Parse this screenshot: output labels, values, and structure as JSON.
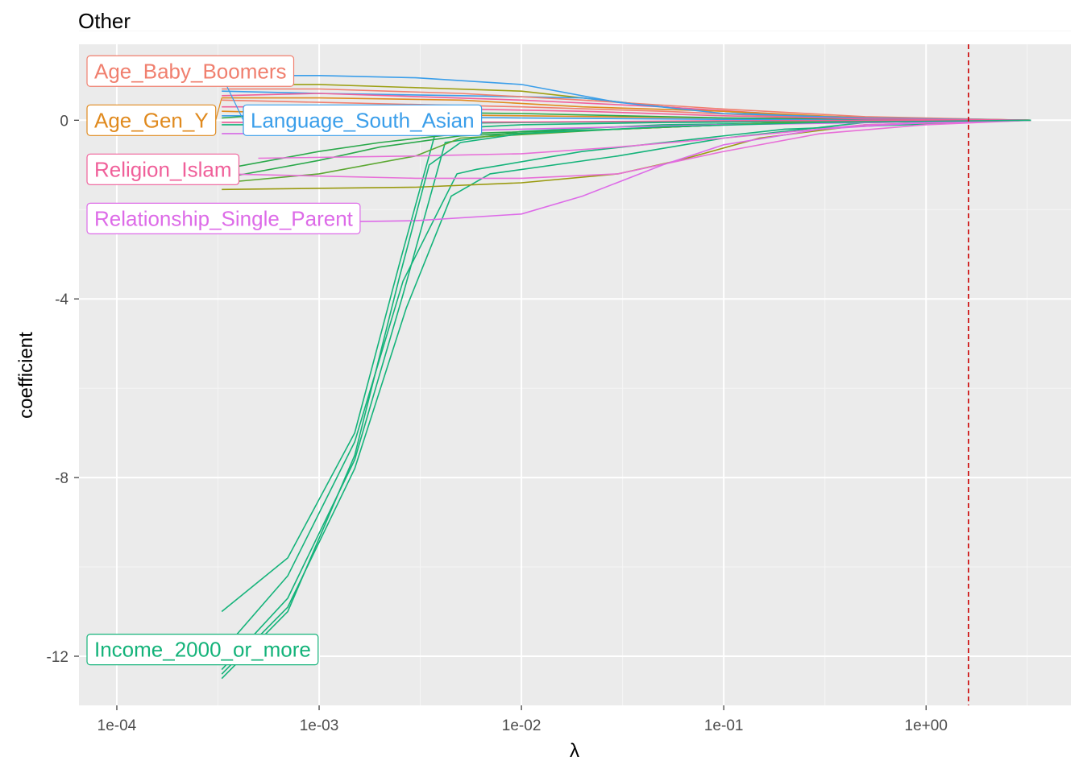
{
  "chart_data": {
    "type": "line",
    "title": "Other",
    "xlabel": "λ",
    "ylabel": "coefficient",
    "x_scale": "log10",
    "xlim": [
      6.5e-05,
      5.2
    ],
    "ylim": [
      -13.1,
      1.7
    ],
    "x_ticks": [
      0.0001,
      0.001,
      0.01,
      0.1,
      1
    ],
    "x_tick_labels": [
      "1e-04",
      "1e-03",
      "1e-02",
      "1e-01",
      "1e+00"
    ],
    "y_ticks": [
      0,
      -4,
      -8,
      -12
    ],
    "y_tick_labels": [
      "0",
      "-4",
      "-8",
      "-12"
    ],
    "grid": true,
    "reference_line": {
      "x": 1.62,
      "style": "dashed",
      "color": "#cc0000"
    },
    "labeled_series": [
      {
        "name": "Age_Baby_Boomers",
        "color": "#F07F6E",
        "points": [
          [
            0.00033,
            0.7
          ],
          [
            0.001,
            0.7
          ],
          [
            0.005,
            0.6
          ],
          [
            0.02,
            0.45
          ],
          [
            0.1,
            0.25
          ],
          [
            0.5,
            0.08
          ],
          [
            3.3,
            0
          ]
        ]
      },
      {
        "name": "Age_Gen_Y",
        "color": "#E08A1E",
        "points": [
          [
            0.00033,
            0.5
          ],
          [
            0.001,
            0.5
          ],
          [
            0.005,
            0.45
          ],
          [
            0.02,
            0.3
          ],
          [
            0.1,
            0.2
          ],
          [
            0.5,
            0.05
          ],
          [
            3.3,
            0
          ]
        ]
      },
      {
        "name": "Language_South_Asian",
        "color": "#3A9EEA",
        "points": [
          [
            0.00033,
            1.0
          ],
          [
            0.001,
            1.0
          ],
          [
            0.003,
            0.95
          ],
          [
            0.01,
            0.8
          ],
          [
            0.03,
            0.4
          ],
          [
            0.1,
            0.15
          ],
          [
            0.5,
            0.05
          ],
          [
            3.3,
            0
          ]
        ]
      },
      {
        "name": "Religion_Islam",
        "color": "#F0609A",
        "points": [
          [
            0.00033,
            0.3
          ],
          [
            0.001,
            0.3
          ],
          [
            0.005,
            0.25
          ],
          [
            0.02,
            0.2
          ],
          [
            0.1,
            0.1
          ],
          [
            0.5,
            0.03
          ],
          [
            3.3,
            0
          ]
        ]
      },
      {
        "name": "Relationship_Single_Parent",
        "color": "#DD6BE8",
        "points": [
          [
            0.0005,
            -2.3
          ],
          [
            0.003,
            -2.25
          ],
          [
            0.01,
            -2.1
          ],
          [
            0.02,
            -1.7
          ],
          [
            0.05,
            -1.0
          ],
          [
            0.1,
            -0.55
          ],
          [
            0.3,
            -0.2
          ],
          [
            1,
            -0.05
          ],
          [
            3.3,
            0
          ]
        ]
      },
      {
        "name": "Income_2000_or_more",
        "color": "#14B37A",
        "points": [
          [
            0.00033,
            -12.5
          ],
          [
            0.0007,
            -11.0
          ],
          [
            0.0015,
            -7.5
          ],
          [
            0.0025,
            -3.5
          ],
          [
            0.0035,
            -1.0
          ],
          [
            0.005,
            -0.5
          ],
          [
            0.01,
            -0.3
          ],
          [
            0.05,
            -0.15
          ],
          [
            0.3,
            -0.05
          ],
          [
            3.3,
            0
          ]
        ]
      }
    ],
    "other_series": [
      {
        "color": "#14B37A",
        "points": [
          [
            0.00033,
            -11.0
          ],
          [
            0.0007,
            -9.8
          ],
          [
            0.0015,
            -7.0
          ],
          [
            0.0025,
            -3.2
          ],
          [
            0.0038,
            -0.2
          ],
          [
            0.01,
            -0.1
          ],
          [
            0.05,
            -0.05
          ],
          [
            3.3,
            0
          ]
        ]
      },
      {
        "color": "#14B37A",
        "points": [
          [
            0.00033,
            -12.3
          ],
          [
            0.0007,
            -10.7
          ],
          [
            0.0015,
            -7.6
          ],
          [
            0.0026,
            -3.9
          ],
          [
            0.0042,
            -0.5
          ],
          [
            0.01,
            -0.25
          ],
          [
            0.05,
            -0.1
          ],
          [
            3.3,
            0
          ]
        ]
      },
      {
        "color": "#14B37A",
        "points": [
          [
            0.00033,
            -12.4
          ],
          [
            0.0007,
            -10.9
          ],
          [
            0.0015,
            -7.8
          ],
          [
            0.0027,
            -4.2
          ],
          [
            0.0045,
            -1.7
          ],
          [
            0.007,
            -1.2
          ],
          [
            0.03,
            -0.8
          ],
          [
            0.1,
            -0.4
          ],
          [
            0.5,
            -0.05
          ],
          [
            3.3,
            0
          ]
        ]
      },
      {
        "color": "#14B37A",
        "points": [
          [
            0.00033,
            -11.9
          ],
          [
            0.0007,
            -10.2
          ],
          [
            0.0015,
            -7.2
          ],
          [
            0.0026,
            -3.6
          ],
          [
            0.0048,
            -1.2
          ],
          [
            0.006,
            -1.1
          ],
          [
            0.02,
            -0.7
          ],
          [
            0.2,
            -0.2
          ],
          [
            3.3,
            0
          ]
        ]
      },
      {
        "color": "#2AA84A",
        "points": [
          [
            0.00033,
            -1.1
          ],
          [
            0.001,
            -0.7
          ],
          [
            0.002,
            -0.5
          ],
          [
            0.005,
            -0.3
          ],
          [
            0.03,
            -0.2
          ],
          [
            0.2,
            -0.05
          ],
          [
            3.3,
            0
          ]
        ]
      },
      {
        "color": "#2AA84A",
        "points": [
          [
            0.00033,
            -1.3
          ],
          [
            0.001,
            -0.9
          ],
          [
            0.002,
            -0.6
          ],
          [
            0.005,
            -0.35
          ],
          [
            0.03,
            -0.2
          ],
          [
            0.2,
            -0.05
          ],
          [
            3.3,
            0
          ]
        ]
      },
      {
        "color": "#5CA832",
        "points": [
          [
            0.00033,
            -1.4
          ],
          [
            0.001,
            -1.2
          ],
          [
            0.003,
            -0.8
          ],
          [
            0.005,
            -0.4
          ],
          [
            0.03,
            -0.2
          ],
          [
            0.2,
            -0.05
          ],
          [
            3.3,
            0
          ]
        ]
      },
      {
        "color": "#9A9A10",
        "points": [
          [
            0.00033,
            -1.55
          ],
          [
            0.003,
            -1.5
          ],
          [
            0.01,
            -1.4
          ],
          [
            0.03,
            -1.2
          ],
          [
            0.06,
            -0.9
          ],
          [
            0.15,
            -0.4
          ],
          [
            0.5,
            -0.1
          ],
          [
            3.3,
            0
          ]
        ]
      },
      {
        "color": "#E86FD8",
        "points": [
          [
            0.00033,
            -1.2
          ],
          [
            0.003,
            -1.3
          ],
          [
            0.01,
            -1.3
          ],
          [
            0.03,
            -1.2
          ],
          [
            0.1,
            -0.7
          ],
          [
            0.3,
            -0.3
          ],
          [
            1,
            -0.1
          ],
          [
            3.3,
            0
          ]
        ]
      },
      {
        "color": "#E86FD8",
        "points": [
          [
            0.0005,
            -0.85
          ],
          [
            0.003,
            -0.8
          ],
          [
            0.01,
            -0.75
          ],
          [
            0.03,
            -0.6
          ],
          [
            0.1,
            -0.4
          ],
          [
            0.5,
            -0.1
          ],
          [
            3.3,
            0
          ]
        ]
      },
      {
        "color": "#9DA015",
        "points": [
          [
            0.00033,
            0.8
          ],
          [
            0.001,
            0.8
          ],
          [
            0.01,
            0.65
          ],
          [
            0.05,
            0.3
          ],
          [
            0.2,
            0.1
          ],
          [
            3.3,
            0
          ]
        ]
      },
      {
        "color": "#3A9EEA",
        "points": [
          [
            0.00033,
            0.65
          ],
          [
            0.001,
            0.6
          ],
          [
            0.005,
            0.55
          ],
          [
            0.02,
            0.5
          ],
          [
            0.05,
            0.3
          ],
          [
            0.3,
            0.05
          ],
          [
            3.3,
            0
          ]
        ]
      },
      {
        "color": "#F07F6E",
        "points": [
          [
            0.00033,
            0.45
          ],
          [
            0.001,
            0.4
          ],
          [
            0.01,
            0.3
          ],
          [
            0.05,
            0.2
          ],
          [
            0.3,
            0.05
          ],
          [
            3.3,
            0
          ]
        ]
      },
      {
        "color": "#F0609A",
        "points": [
          [
            0.00033,
            0.55
          ],
          [
            0.001,
            0.6
          ],
          [
            0.01,
            0.45
          ],
          [
            0.05,
            0.3
          ],
          [
            0.3,
            0.08
          ],
          [
            3.3,
            0
          ]
        ]
      },
      {
        "color": "#E08A1E",
        "points": [
          [
            0.00033,
            0.2
          ],
          [
            0.001,
            0.15
          ],
          [
            0.01,
            0.1
          ],
          [
            0.1,
            0.05
          ],
          [
            3.3,
            0
          ]
        ]
      },
      {
        "color": "#D66BE6",
        "points": [
          [
            0.00033,
            -0.3
          ],
          [
            0.001,
            -0.3
          ],
          [
            0.01,
            -0.2
          ],
          [
            0.1,
            -0.1
          ],
          [
            3.3,
            0
          ]
        ]
      },
      {
        "color": "#14B37A",
        "points": [
          [
            0.00033,
            -0.1
          ],
          [
            0.001,
            -0.1
          ],
          [
            0.01,
            -0.05
          ],
          [
            0.1,
            -0.02
          ],
          [
            3.3,
            0
          ]
        ]
      },
      {
        "color": "#3A9EEA",
        "points": [
          [
            0.00033,
            0.1
          ],
          [
            0.001,
            0.1
          ],
          [
            0.01,
            0.05
          ],
          [
            0.1,
            0.02
          ],
          [
            3.3,
            0
          ]
        ]
      },
      {
        "color": "#2AA84A",
        "points": [
          [
            0.00033,
            0.05
          ],
          [
            0.001,
            0.2
          ],
          [
            0.01,
            0.15
          ],
          [
            0.1,
            0.05
          ],
          [
            3.3,
            0
          ]
        ]
      },
      {
        "color": "#F0609A",
        "points": [
          [
            0.00033,
            -0.05
          ],
          [
            0.001,
            -0.05
          ],
          [
            0.01,
            -0.04
          ],
          [
            0.1,
            -0.01
          ],
          [
            3.3,
            0
          ]
        ]
      }
    ]
  }
}
